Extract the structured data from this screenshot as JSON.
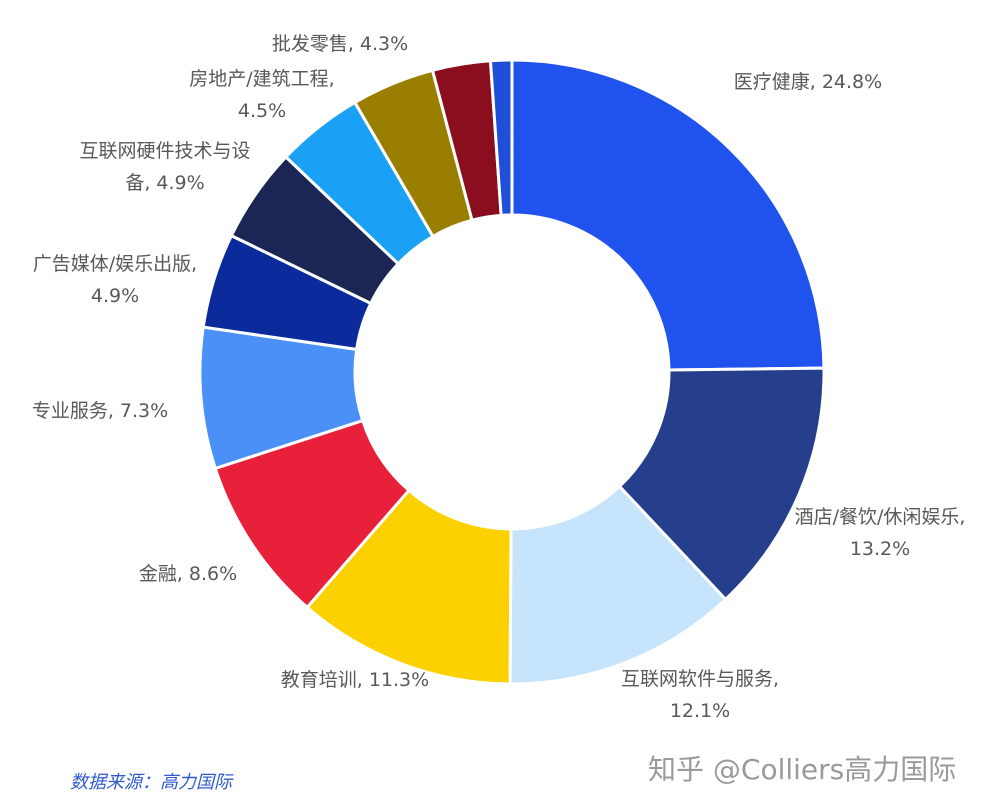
{
  "chart_data": {
    "type": "donut",
    "values": [
      24.8,
      13.2,
      12.1,
      11.3,
      8.6,
      7.3,
      4.9,
      4.9,
      4.5,
      4.3,
      3.0,
      1.1
    ],
    "value_labels": [
      "医疗健康, 24.8%",
      "酒店/餐饮/休闲娱乐, 13.2%",
      "互联网软件与服务, 12.1%",
      "教育培训, 11.3%",
      "金融, 8.6%",
      "专业服务, 7.3%",
      "广告媒体/娱乐出版, 4.9%",
      "互联网硬件技术与设备, 4.9%",
      "房地产/建筑工程, 4.5%",
      "批发零售, 4.3%",
      null,
      null
    ],
    "colors": [
      "#2052ee",
      "#253f8c",
      "#c6e4fb",
      "#fdd100",
      "#e8203a",
      "#4a90f7",
      "#0b2b9c",
      "#1b2654",
      "#1aa0f5",
      "#9a7e00",
      "#8b0e1e",
      "#1f4fd8"
    ],
    "source": "数据来源：高力国际",
    "watermark": "知乎 @Colliers高力国际"
  }
}
